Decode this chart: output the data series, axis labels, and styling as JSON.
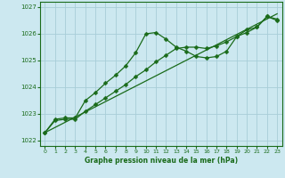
{
  "title": "Graphe pression niveau de la mer (hPa)",
  "bg_color": "#cce8f0",
  "grid_color": "#a8cdd8",
  "line_color": "#1a6b1a",
  "text_color": "#1a6b1a",
  "xlim": [
    -0.5,
    23.5
  ],
  "ylim": [
    1021.8,
    1027.2
  ],
  "yticks": [
    1022,
    1023,
    1024,
    1025,
    1026,
    1027
  ],
  "xticks": [
    0,
    1,
    2,
    3,
    4,
    5,
    6,
    7,
    8,
    9,
    10,
    11,
    12,
    13,
    14,
    15,
    16,
    17,
    18,
    19,
    20,
    21,
    22,
    23
  ],
  "series1_x": [
    0,
    1,
    2,
    3,
    4,
    5,
    6,
    7,
    8,
    9,
    10,
    11,
    12,
    13,
    14,
    15,
    16,
    17,
    18,
    19,
    20,
    21,
    22,
    23
  ],
  "series1_y": [
    1022.3,
    1022.8,
    1022.85,
    1022.85,
    1023.5,
    1023.8,
    1024.15,
    1024.45,
    1024.8,
    1025.3,
    1026.0,
    1026.05,
    1025.8,
    1025.5,
    1025.35,
    1025.15,
    1025.1,
    1025.15,
    1025.35,
    1025.9,
    1026.15,
    1026.25,
    1026.65,
    1026.55
  ],
  "series2_x": [
    0,
    1,
    2,
    3,
    4,
    5,
    6,
    7,
    8,
    9,
    10,
    11,
    12,
    13,
    14,
    15,
    16,
    17,
    18,
    19,
    20,
    21,
    22,
    23
  ],
  "series2_y": [
    1022.3,
    1022.75,
    1022.8,
    1022.8,
    1023.1,
    1023.35,
    1023.6,
    1023.85,
    1024.1,
    1024.4,
    1024.65,
    1024.95,
    1025.2,
    1025.45,
    1025.5,
    1025.5,
    1025.45,
    1025.55,
    1025.7,
    1025.9,
    1026.05,
    1026.25,
    1026.65,
    1026.5
  ],
  "series3_x": [
    0,
    23
  ],
  "series3_y": [
    1022.3,
    1026.75
  ]
}
